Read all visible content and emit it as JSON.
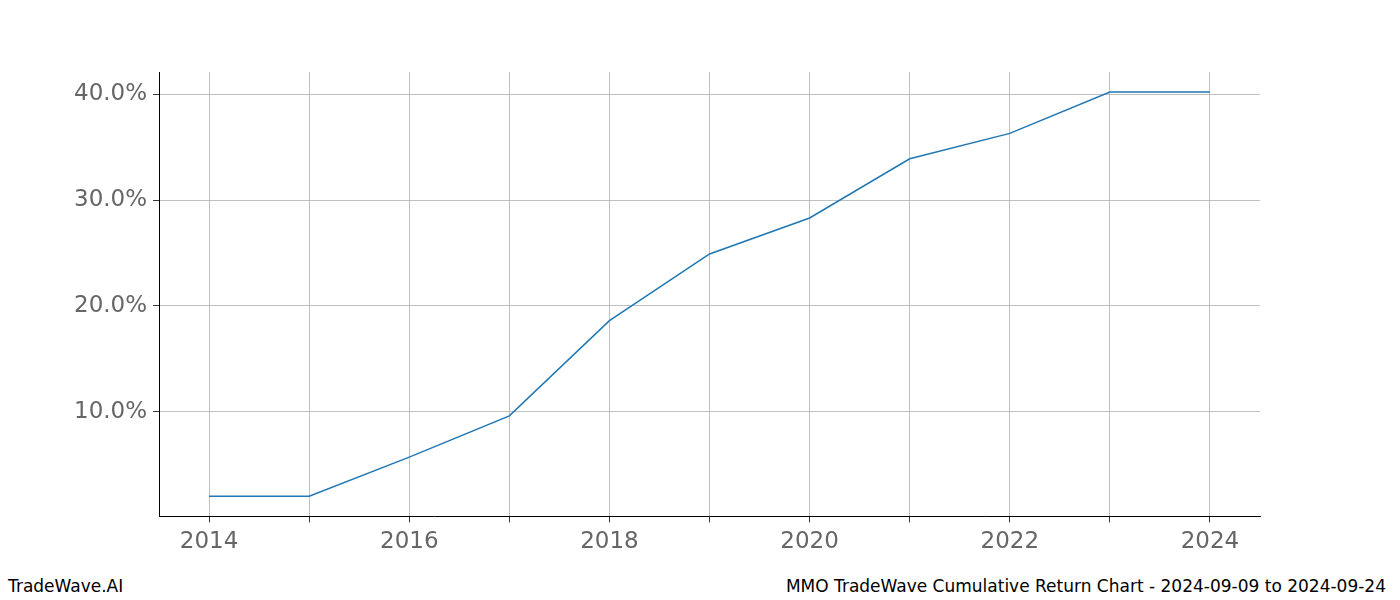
{
  "chart_data": {
    "type": "line",
    "x": [
      2014,
      2015,
      2016,
      2017,
      2018,
      2019,
      2020,
      2021,
      2022,
      2023,
      2024
    ],
    "values": [
      2.0,
      2.0,
      5.7,
      9.6,
      18.6,
      24.9,
      28.3,
      33.9,
      36.3,
      40.2,
      40.2
    ],
    "color": "#1f77b4",
    "xlim": [
      2013.5,
      2024.5
    ],
    "xticks": [
      2014,
      2016,
      2018,
      2020,
      2022,
      2024
    ],
    "ylim": [
      0.1,
      42.1
    ],
    "yticks": [
      {
        "value": 10,
        "label": "10.0%"
      },
      {
        "value": 20,
        "label": "20.0%"
      },
      {
        "value": 30,
        "label": "30.0%"
      },
      {
        "value": 40,
        "label": "40.0%"
      }
    ],
    "grid": true,
    "annotations": [
      "TradeWave.AI",
      "MMO TradeWave Cumulative Return Chart - 2024-09-09 to 2024-09-24"
    ]
  }
}
